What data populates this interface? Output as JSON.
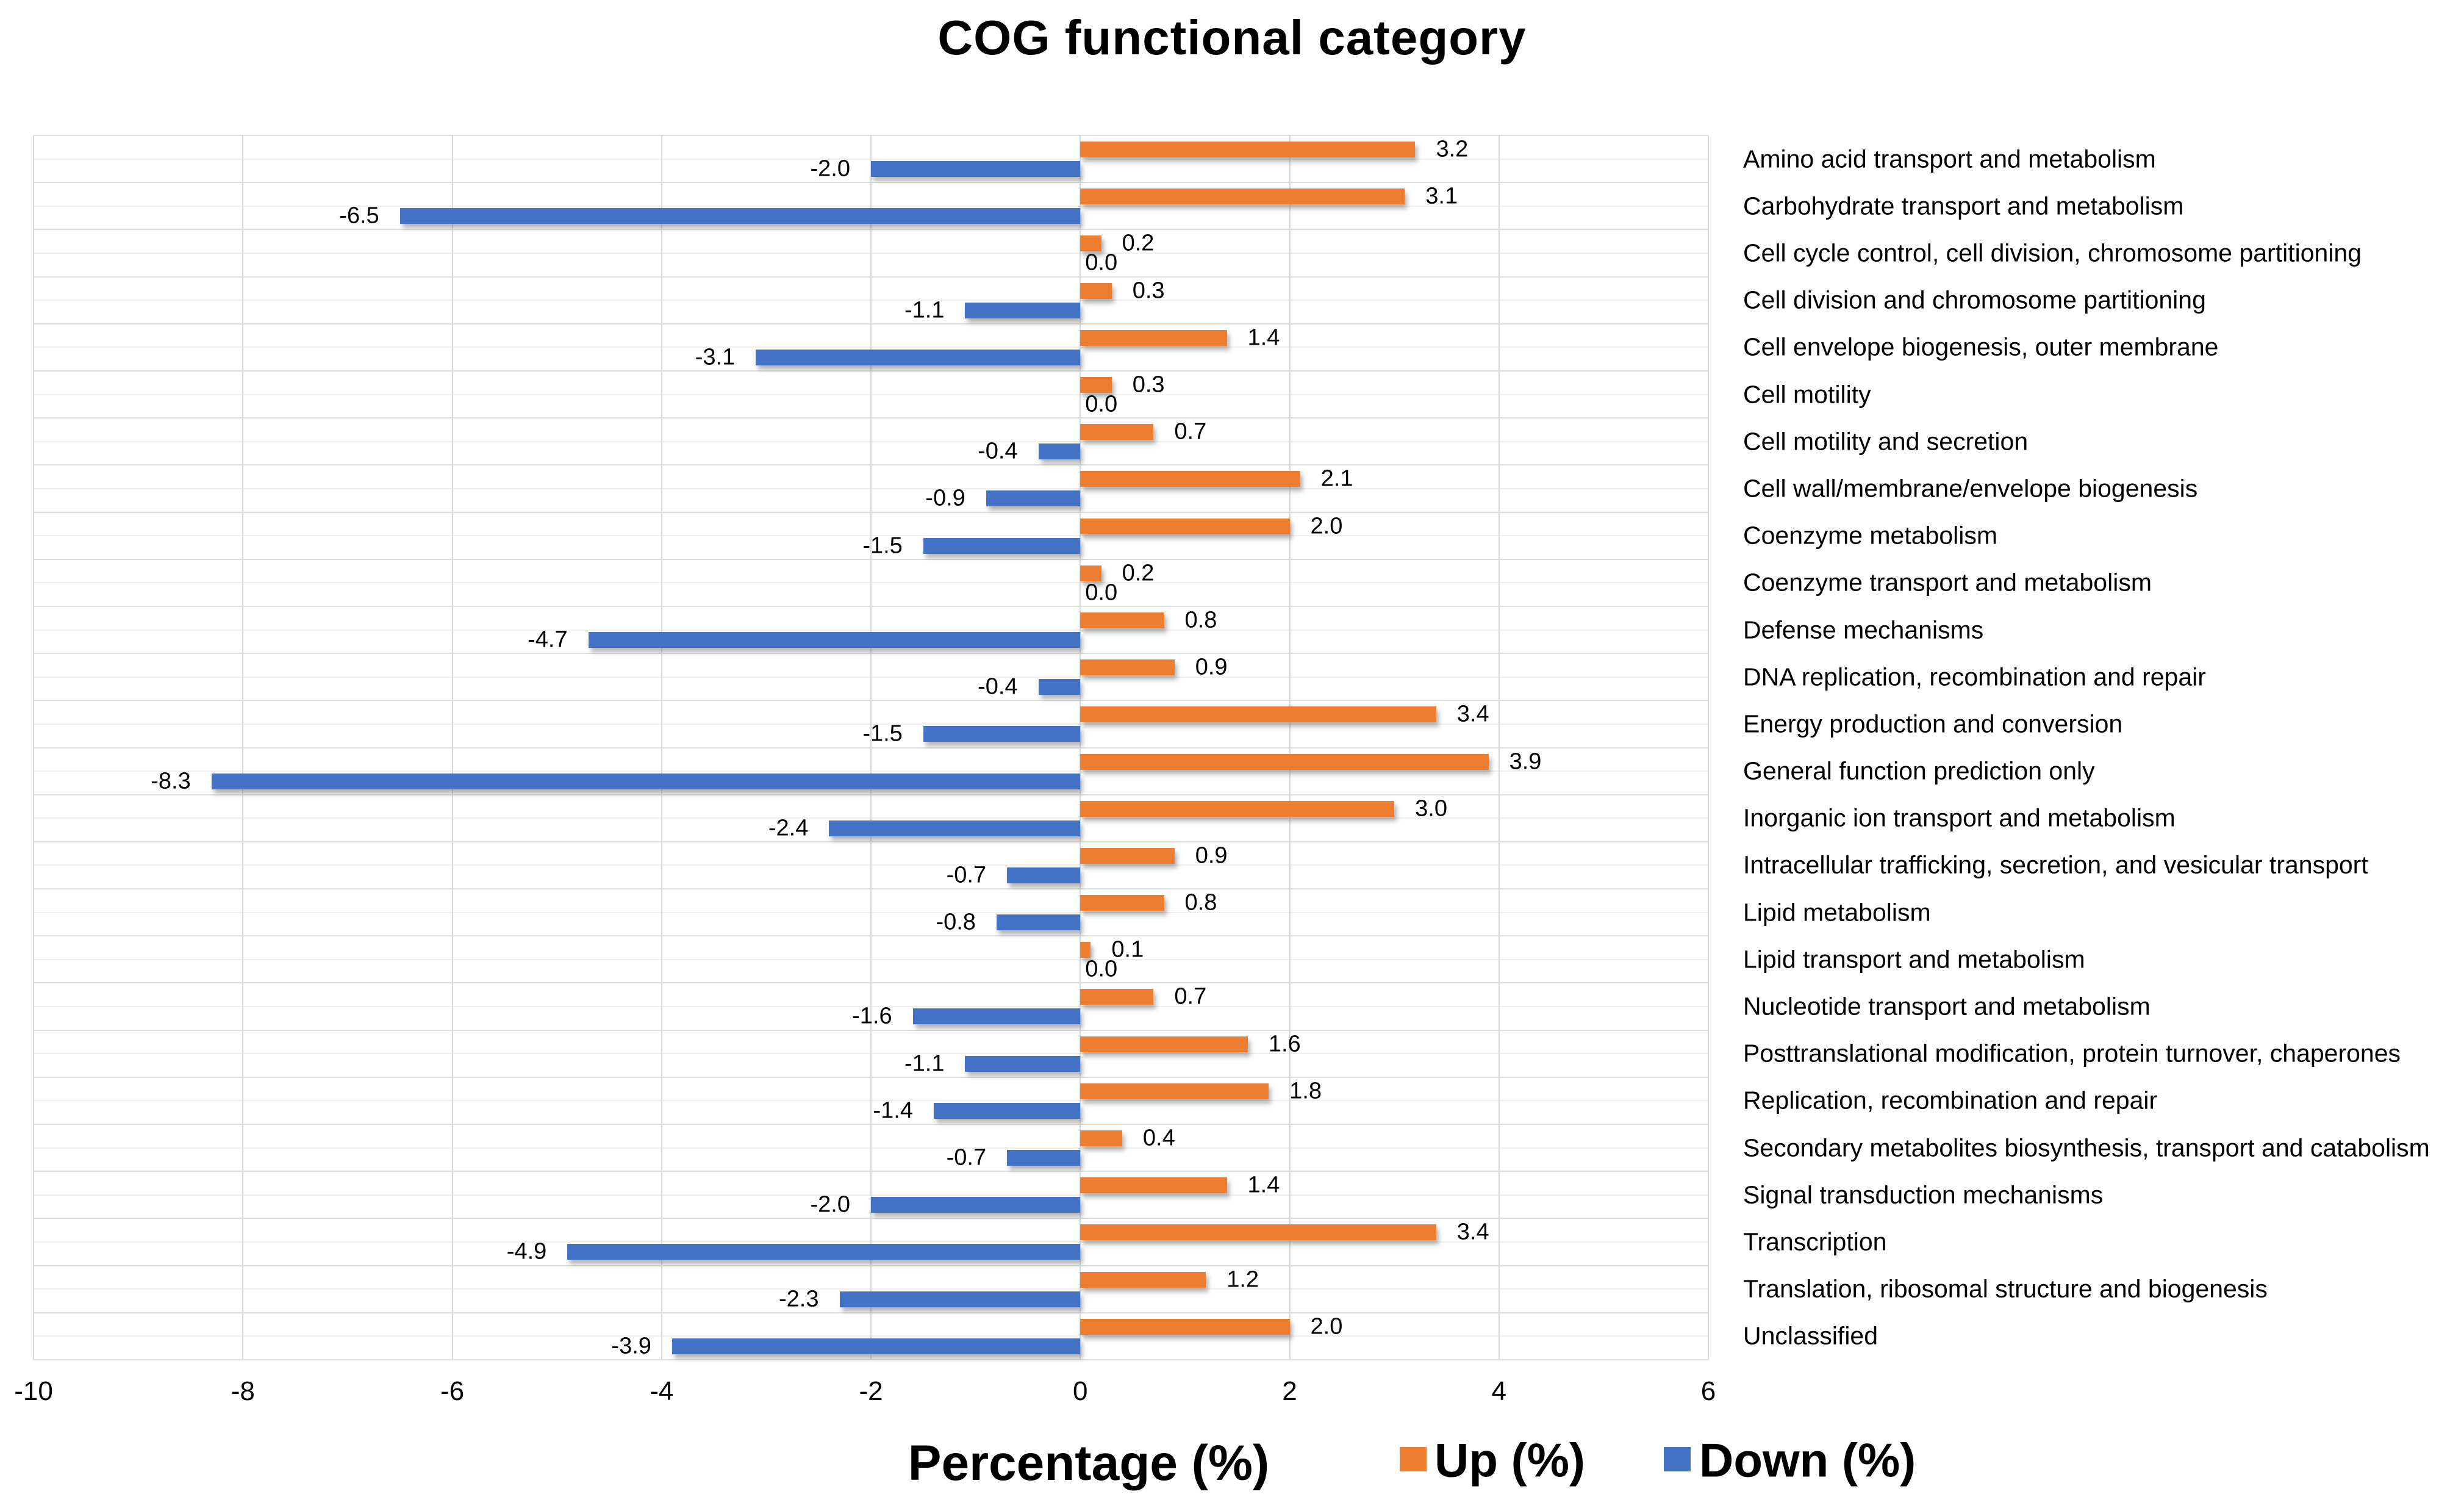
{
  "title": "COG functional category",
  "x_axis": {
    "label": "Percentage (%)",
    "tick_values": [
      -10,
      -8,
      -6,
      -4,
      -2,
      0,
      2,
      4,
      6
    ],
    "tick_labels": [
      "-10",
      "-8",
      "-6",
      "-4",
      "-2",
      "0",
      "2",
      "4",
      "6"
    ]
  },
  "legend": {
    "up": {
      "label": "Up (%)",
      "color": "#ED7D31"
    },
    "down": {
      "label": "Down (%)",
      "color": "#4472C4"
    }
  },
  "colors": {
    "up_bar": "#ED7D31",
    "down_bar": "#4472C4",
    "gridline": "#dedede"
  },
  "chart_data": {
    "type": "bar",
    "orientation": "horizontal-diverging",
    "title": "COG functional category",
    "xlabel": "Percentage (%)",
    "ylabel": "",
    "xlim": [
      -10,
      6
    ],
    "grid": true,
    "legend_position": "bottom",
    "value_label_format": "one-decimal",
    "categories": [
      "Amino acid transport and metabolism",
      "Carbohydrate transport and metabolism",
      "Cell cycle control, cell division, chromosome partitioning",
      "Cell division and chromosome partitioning",
      "Cell envelope biogenesis, outer membrane",
      "Cell motility",
      "Cell motility and secretion",
      "Cell wall/membrane/envelope biogenesis",
      "Coenzyme metabolism",
      "Coenzyme transport and metabolism",
      "Defense mechanisms",
      "DNA replication, recombination and repair",
      "Energy production and conversion",
      "General function prediction only",
      "Inorganic ion transport and metabolism",
      "Intracellular trafficking, secretion, and vesicular transport",
      "Lipid metabolism",
      "Lipid transport and metabolism",
      "Nucleotide transport and metabolism",
      "Posttranslational modification, protein turnover, chaperones",
      "Replication, recombination and repair",
      "Secondary metabolites biosynthesis, transport and catabolism",
      "Signal transduction mechanisms",
      "Transcription",
      "Translation, ribosomal structure and biogenesis",
      "Unclassified"
    ],
    "series": [
      {
        "name": "Up (%)",
        "color": "#ED7D31",
        "values": [
          3.2,
          3.1,
          0.2,
          0.3,
          1.4,
          0.3,
          0.7,
          2.1,
          2.0,
          0.2,
          0.8,
          0.9,
          3.4,
          3.9,
          3.0,
          0.9,
          0.8,
          0.1,
          0.7,
          1.6,
          1.8,
          0.4,
          1.4,
          3.4,
          1.2,
          2.0
        ]
      },
      {
        "name": "Down (%)",
        "color": "#4472C4",
        "values": [
          -2.0,
          -6.5,
          0.0,
          -1.1,
          -3.1,
          0.0,
          -0.4,
          -0.9,
          -1.5,
          0.0,
          -4.7,
          -0.4,
          -1.5,
          -8.3,
          -2.4,
          -0.7,
          -0.8,
          0.0,
          -1.6,
          -1.1,
          -1.4,
          -0.7,
          -2.0,
          -4.9,
          -2.3,
          -3.9
        ]
      }
    ]
  }
}
